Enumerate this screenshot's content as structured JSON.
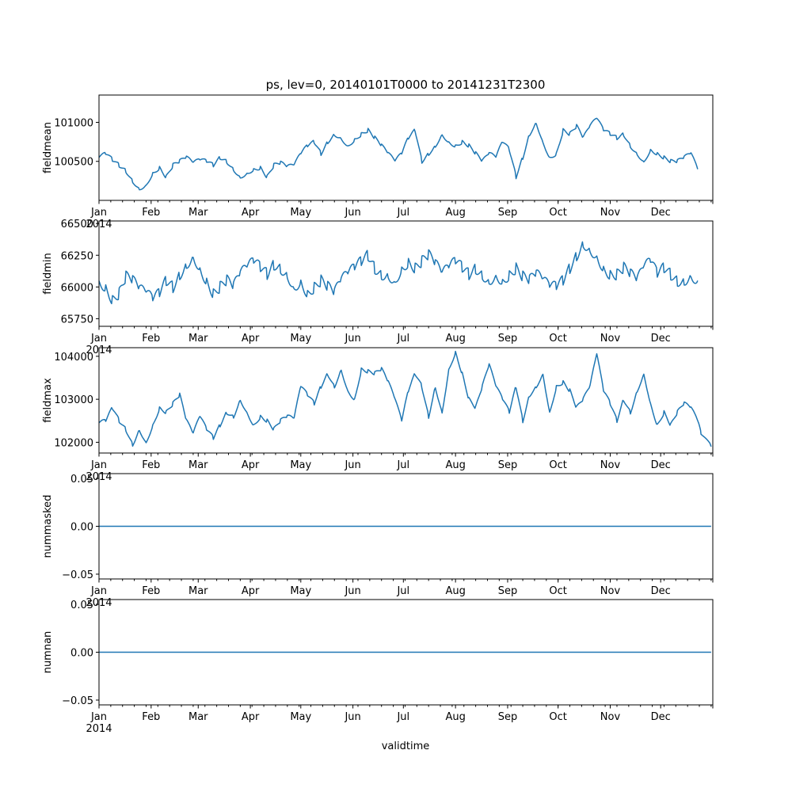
{
  "chart_data": {
    "type": "line",
    "title": "ps, lev=0, 20140101T0000 to 20141231T2300",
    "xlabel": "validtime",
    "x_range": [
      "2014-01-01",
      "2014-12-31T23:00"
    ],
    "month_ticks": [
      "Jan",
      "Feb",
      "Mar",
      "Apr",
      "May",
      "Jun",
      "Jul",
      "Aug",
      "Sep",
      "Oct",
      "Nov",
      "Dec"
    ],
    "year_label": "2014",
    "line_color": "#1f77b4",
    "panels": [
      {
        "ylabel": "fieldmean",
        "ylim": [
          100000,
          101350
        ],
        "yticks": [
          {
            "value": 100500,
            "label": "100500"
          },
          {
            "value": 101000,
            "label": "101000"
          }
        ],
        "points": [
          [
            0,
            100550
          ],
          [
            4,
            100600
          ],
          [
            8,
            100520
          ],
          [
            12,
            100450
          ],
          [
            16,
            100380
          ],
          [
            20,
            100250
          ],
          [
            24,
            100150
          ],
          [
            28,
            100200
          ],
          [
            32,
            100350
          ],
          [
            36,
            100420
          ],
          [
            40,
            100300
          ],
          [
            44,
            100450
          ],
          [
            48,
            100500
          ],
          [
            52,
            100550
          ],
          [
            56,
            100480
          ],
          [
            60,
            100520
          ],
          [
            64,
            100500
          ],
          [
            68,
            100450
          ],
          [
            72,
            100550
          ],
          [
            76,
            100500
          ],
          [
            80,
            100400
          ],
          [
            84,
            100300
          ],
          [
            88,
            100350
          ],
          [
            92,
            100400
          ],
          [
            96,
            100420
          ],
          [
            100,
            100300
          ],
          [
            104,
            100450
          ],
          [
            108,
            100480
          ],
          [
            112,
            100430
          ],
          [
            116,
            100450
          ],
          [
            120,
            100600
          ],
          [
            124,
            100700
          ],
          [
            128,
            100750
          ],
          [
            132,
            100600
          ],
          [
            136,
            100750
          ],
          [
            140,
            100850
          ],
          [
            144,
            100800
          ],
          [
            148,
            100700
          ],
          [
            152,
            100780
          ],
          [
            156,
            100850
          ],
          [
            160,
            100900
          ],
          [
            164,
            100800
          ],
          [
            168,
            100700
          ],
          [
            172,
            100600
          ],
          [
            176,
            100500
          ],
          [
            180,
            100600
          ],
          [
            184,
            100800
          ],
          [
            188,
            100900
          ],
          [
            192,
            100500
          ],
          [
            196,
            100600
          ],
          [
            200,
            100700
          ],
          [
            204,
            100850
          ],
          [
            208,
            100750
          ],
          [
            212,
            100700
          ],
          [
            216,
            100750
          ],
          [
            220,
            100700
          ],
          [
            224,
            100600
          ],
          [
            228,
            100500
          ],
          [
            232,
            100600
          ],
          [
            236,
            100550
          ],
          [
            240,
            100750
          ],
          [
            244,
            100650
          ],
          [
            248,
            100300
          ],
          [
            252,
            100550
          ],
          [
            256,
            100850
          ],
          [
            260,
            101000
          ],
          [
            264,
            100750
          ],
          [
            268,
            100550
          ],
          [
            272,
            100600
          ],
          [
            276,
            100900
          ],
          [
            280,
            100850
          ],
          [
            284,
            100950
          ],
          [
            288,
            100800
          ],
          [
            292,
            100950
          ],
          [
            296,
            101050
          ],
          [
            300,
            100900
          ],
          [
            304,
            100850
          ],
          [
            308,
            100800
          ],
          [
            312,
            100850
          ],
          [
            316,
            100700
          ],
          [
            320,
            100600
          ],
          [
            324,
            100500
          ],
          [
            328,
            100650
          ],
          [
            332,
            100600
          ],
          [
            336,
            100550
          ],
          [
            340,
            100500
          ],
          [
            344,
            100500
          ],
          [
            348,
            100550
          ],
          [
            352,
            100600
          ],
          [
            356,
            100400
          ]
        ]
      },
      {
        "ylabel": "fieldmin",
        "ylim": [
          65690,
          66520
        ],
        "yticks": [
          {
            "value": 65750,
            "label": "65750"
          },
          {
            "value": 66000,
            "label": "66000"
          },
          {
            "value": 66250,
            "label": "66250"
          },
          {
            "value": 66500,
            "label": "66500"
          }
        ],
        "points": [
          [
            0,
            66050
          ],
          [
            4,
            66000
          ],
          [
            8,
            65900
          ],
          [
            12,
            65950
          ],
          [
            16,
            66080
          ],
          [
            20,
            66050
          ],
          [
            24,
            65980
          ],
          [
            28,
            65950
          ],
          [
            32,
            65900
          ],
          [
            36,
            65950
          ],
          [
            40,
            66050
          ],
          [
            44,
            66000
          ],
          [
            48,
            66100
          ],
          [
            52,
            66180
          ],
          [
            56,
            66250
          ],
          [
            60,
            66150
          ],
          [
            64,
            66050
          ],
          [
            68,
            65950
          ],
          [
            72,
            66000
          ],
          [
            76,
            66050
          ],
          [
            80,
            66000
          ],
          [
            84,
            66100
          ],
          [
            88,
            66150
          ],
          [
            92,
            66200
          ],
          [
            96,
            66150
          ],
          [
            100,
            66100
          ],
          [
            104,
            66180
          ],
          [
            108,
            66150
          ],
          [
            112,
            66100
          ],
          [
            116,
            66000
          ],
          [
            120,
            66050
          ],
          [
            124,
            65950
          ],
          [
            128,
            66000
          ],
          [
            132,
            66050
          ],
          [
            136,
            66000
          ],
          [
            140,
            65950
          ],
          [
            144,
            66050
          ],
          [
            148,
            66100
          ],
          [
            152,
            66150
          ],
          [
            156,
            66200
          ],
          [
            160,
            66250
          ],
          [
            164,
            66150
          ],
          [
            168,
            66100
          ],
          [
            172,
            66100
          ],
          [
            176,
            66050
          ],
          [
            180,
            66150
          ],
          [
            184,
            66200
          ],
          [
            188,
            66150
          ],
          [
            192,
            66200
          ],
          [
            196,
            66250
          ],
          [
            200,
            66180
          ],
          [
            204,
            66100
          ],
          [
            208,
            66150
          ],
          [
            212,
            66200
          ],
          [
            216,
            66150
          ],
          [
            220,
            66100
          ],
          [
            224,
            66150
          ],
          [
            228,
            66100
          ],
          [
            232,
            66050
          ],
          [
            236,
            66100
          ],
          [
            240,
            66050
          ],
          [
            244,
            66100
          ],
          [
            248,
            66150
          ],
          [
            252,
            66080
          ],
          [
            256,
            66050
          ],
          [
            260,
            66100
          ],
          [
            264,
            66050
          ],
          [
            268,
            66000
          ],
          [
            272,
            66000
          ],
          [
            276,
            66050
          ],
          [
            280,
            66150
          ],
          [
            284,
            66250
          ],
          [
            288,
            66350
          ],
          [
            292,
            66300
          ],
          [
            296,
            66250
          ],
          [
            300,
            66150
          ],
          [
            304,
            66100
          ],
          [
            308,
            66100
          ],
          [
            312,
            66150
          ],
          [
            316,
            66100
          ],
          [
            320,
            66050
          ],
          [
            324,
            66150
          ],
          [
            328,
            66200
          ],
          [
            332,
            66100
          ],
          [
            336,
            66150
          ],
          [
            340,
            66100
          ],
          [
            344,
            66050
          ],
          [
            348,
            66050
          ],
          [
            352,
            66100
          ],
          [
            356,
            66050
          ]
        ]
      },
      {
        "ylabel": "fieldmax",
        "ylim": [
          101750,
          104200
        ],
        "yticks": [
          {
            "value": 102000,
            "label": "102000"
          },
          {
            "value": 103000,
            "label": "103000"
          },
          {
            "value": 104000,
            "label": "104000"
          }
        ],
        "points": [
          [
            0,
            102450
          ],
          [
            4,
            102500
          ],
          [
            8,
            102800
          ],
          [
            12,
            102500
          ],
          [
            16,
            102300
          ],
          [
            20,
            101950
          ],
          [
            24,
            102300
          ],
          [
            28,
            102000
          ],
          [
            32,
            102400
          ],
          [
            36,
            102800
          ],
          [
            40,
            102700
          ],
          [
            44,
            102900
          ],
          [
            48,
            103100
          ],
          [
            52,
            102500
          ],
          [
            56,
            102200
          ],
          [
            60,
            102600
          ],
          [
            64,
            102300
          ],
          [
            68,
            102100
          ],
          [
            72,
            102400
          ],
          [
            76,
            102700
          ],
          [
            80,
            102600
          ],
          [
            84,
            103000
          ],
          [
            88,
            102700
          ],
          [
            92,
            102400
          ],
          [
            96,
            102600
          ],
          [
            100,
            102500
          ],
          [
            104,
            102300
          ],
          [
            108,
            102500
          ],
          [
            112,
            102600
          ],
          [
            116,
            102550
          ],
          [
            120,
            103300
          ],
          [
            124,
            103100
          ],
          [
            128,
            102900
          ],
          [
            132,
            103300
          ],
          [
            136,
            103600
          ],
          [
            140,
            103300
          ],
          [
            144,
            103700
          ],
          [
            148,
            103200
          ],
          [
            152,
            103000
          ],
          [
            156,
            103700
          ],
          [
            160,
            103650
          ],
          [
            164,
            103600
          ],
          [
            168,
            103700
          ],
          [
            172,
            103400
          ],
          [
            176,
            103000
          ],
          [
            180,
            102500
          ],
          [
            184,
            103200
          ],
          [
            188,
            103600
          ],
          [
            192,
            103300
          ],
          [
            196,
            102600
          ],
          [
            200,
            103300
          ],
          [
            204,
            102700
          ],
          [
            208,
            103700
          ],
          [
            212,
            104100
          ],
          [
            216,
            103600
          ],
          [
            220,
            103000
          ],
          [
            224,
            102800
          ],
          [
            228,
            103300
          ],
          [
            232,
            103800
          ],
          [
            236,
            103300
          ],
          [
            240,
            103000
          ],
          [
            244,
            102700
          ],
          [
            248,
            103300
          ],
          [
            252,
            102500
          ],
          [
            256,
            103100
          ],
          [
            260,
            103300
          ],
          [
            264,
            103600
          ],
          [
            268,
            102700
          ],
          [
            272,
            103300
          ],
          [
            276,
            103400
          ],
          [
            280,
            103200
          ],
          [
            284,
            102800
          ],
          [
            288,
            103000
          ],
          [
            292,
            103300
          ],
          [
            296,
            104050
          ],
          [
            300,
            103200
          ],
          [
            304,
            102900
          ],
          [
            308,
            102500
          ],
          [
            312,
            103000
          ],
          [
            316,
            102700
          ],
          [
            320,
            103200
          ],
          [
            324,
            103600
          ],
          [
            328,
            102900
          ],
          [
            332,
            102400
          ],
          [
            336,
            102700
          ],
          [
            340,
            102400
          ],
          [
            344,
            102700
          ],
          [
            348,
            102900
          ],
          [
            352,
            102800
          ],
          [
            356,
            102500
          ],
          [
            358,
            102200
          ],
          [
            364,
            101900
          ]
        ]
      },
      {
        "ylabel": "nummasked",
        "ylim": [
          -0.055,
          0.055
        ],
        "yticks": [
          {
            "value": -0.05,
            "label": "−0.05"
          },
          {
            "value": 0,
            "label": "0.00"
          },
          {
            "value": 0.05,
            "label": "0.05"
          }
        ],
        "points": [
          [
            0,
            0
          ],
          [
            364,
            0
          ]
        ]
      },
      {
        "ylabel": "numnan",
        "ylim": [
          -0.055,
          0.055
        ],
        "yticks": [
          {
            "value": -0.05,
            "label": "−0.05"
          },
          {
            "value": 0,
            "label": "0.00"
          },
          {
            "value": 0.05,
            "label": "0.05"
          }
        ],
        "points": [
          [
            0,
            0
          ],
          [
            364,
            0
          ]
        ]
      }
    ]
  }
}
